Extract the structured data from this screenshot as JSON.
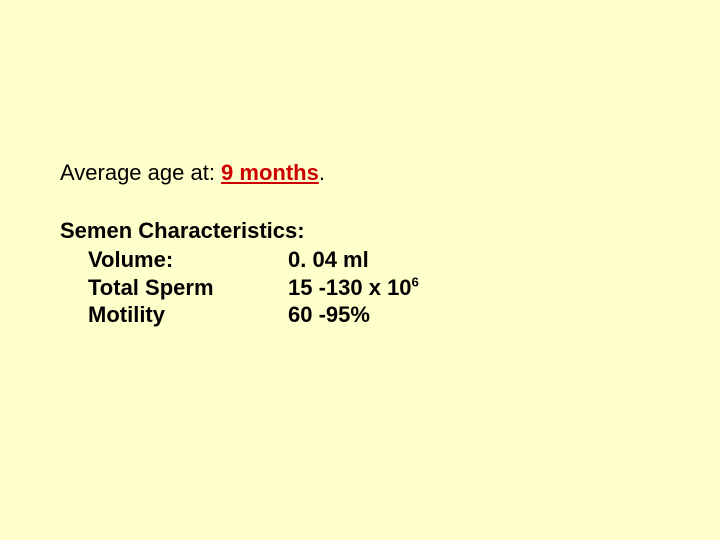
{
  "slide": {
    "background_color": "#ffffcc",
    "text_color": "#000000",
    "emphasis_color": "#cc0000",
    "font_family": "Arial",
    "base_fontsize_pt": 17,
    "line1_prefix": "Average age at: ",
    "line1_emphasis": "9 months",
    "line1_suffix": ".",
    "heading": "Semen Characteristics:",
    "rows": [
      {
        "label": "Volume:",
        "value": "0. 04 ml"
      },
      {
        "label": "Total Sperm",
        "value_prefix": "15 -130 x 10",
        "value_super": "6"
      },
      {
        "label": "Motility",
        "value": "60 -95%"
      }
    ]
  }
}
